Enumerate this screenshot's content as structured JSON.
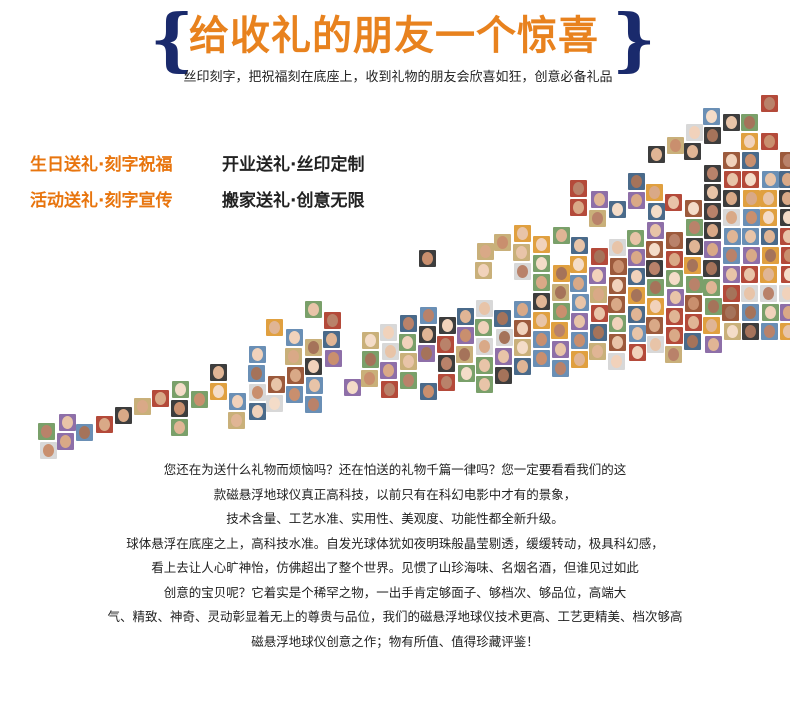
{
  "banner": {
    "title": "给收礼的朋友一个惊喜",
    "subtitle": "丝印刻字，把祝福刻在底座上，收到礼物的朋友会欣喜如狂，创意必备礼品",
    "colors": {
      "title": "#e8821e",
      "brace": "#1a2a6c"
    }
  },
  "phrases": [
    {
      "text": "生日送礼·刻字祝福",
      "style": "orange"
    },
    {
      "text": "开业送礼·丝印定制",
      "style": "dark"
    },
    {
      "text": "活动送礼·刻字宣传",
      "style": "orange"
    },
    {
      "text": "搬家送礼·创意无限",
      "style": "dark"
    }
  ],
  "mosaic": {
    "description_icon": "photo-mosaic-of-faces",
    "skin_colors": [
      "#e8c4a8",
      "#d9a987",
      "#f1d2bb",
      "#c98f6e",
      "#b9826a",
      "#e0b595",
      "#f4dcc8",
      "#a5735a"
    ],
    "bg_colors": [
      "#6a8fb5",
      "#9c5a3c",
      "#3d3d3d",
      "#c9b07a",
      "#7aa06a",
      "#d8d8d8",
      "#8e6fa8",
      "#e0a040",
      "#4a6a8a",
      "#b44a3a"
    ]
  },
  "body": {
    "lines": [
      "您还在为送什么礼物而烦恼吗？还在怕送的礼物千篇一律吗？您一定要看看我们的这",
      "款磁悬浮地球仪真正高科技，以前只有在科幻电影中才有的景象，",
      "技术含量、工艺水准、实用性、美观度、功能性都全新升级。",
      "球体悬浮在底座之上，高科技水准。自发光球体犹如夜明珠般晶莹剔透，缓缓转动，极具科幻感，",
      "看上去让人心旷神怡，仿佛超出了整个世界。见惯了山珍海味、名烟名酒，但谁见过如此",
      "创意的宝贝呢？它着实是个稀罕之物，一出手肯定够面子、够档次、够品位，高端大",
      "气、精致、神奇、灵动彰显着无上的尊贵与品位，我们的磁悬浮地球仪技术更高、工艺更精美、档次够高",
      "磁悬浮地球仪创意之作；物有所值、值得珍藏评鉴！"
    ]
  }
}
